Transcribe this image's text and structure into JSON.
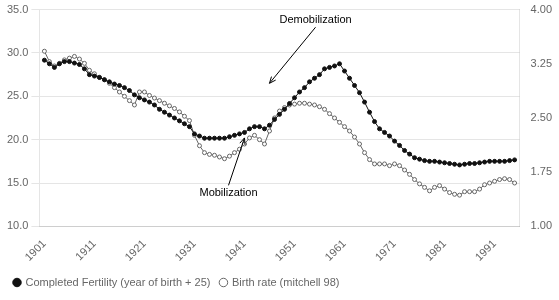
{
  "chart_data": {
    "type": "line",
    "x": [
      1901,
      1902,
      1903,
      1904,
      1905,
      1906,
      1907,
      1908,
      1909,
      1910,
      1911,
      1912,
      1913,
      1914,
      1915,
      1916,
      1917,
      1918,
      1919,
      1920,
      1921,
      1922,
      1923,
      1924,
      1925,
      1926,
      1927,
      1928,
      1929,
      1930,
      1931,
      1932,
      1933,
      1934,
      1935,
      1936,
      1937,
      1938,
      1939,
      1940,
      1941,
      1942,
      1943,
      1944,
      1945,
      1946,
      1947,
      1948,
      1949,
      1950,
      1951,
      1952,
      1953,
      1954,
      1955,
      1956,
      1957,
      1958,
      1959,
      1960,
      1961,
      1962,
      1963,
      1964,
      1965,
      1966,
      1967,
      1968,
      1969,
      1970,
      1971,
      1972,
      1973,
      1974,
      1975,
      1976,
      1977,
      1978,
      1979,
      1980,
      1981,
      1982,
      1983,
      1984,
      1985,
      1986,
      1987,
      1988,
      1989,
      1990,
      1991,
      1992,
      1993,
      1994,
      1995
    ],
    "series": [
      {
        "name": "Birth rate (mitchell 98)",
        "color": "#666666",
        "marker": "open_circle",
        "values": [
          30.2,
          29.0,
          28.5,
          28.8,
          29.2,
          29.4,
          29.6,
          29.3,
          28.8,
          28.0,
          27.6,
          27.2,
          26.9,
          26.5,
          26.0,
          25.5,
          25.0,
          24.5,
          24.0,
          25.5,
          25.5,
          25.1,
          24.8,
          24.5,
          24.2,
          23.9,
          23.6,
          23.2,
          22.7,
          22.2,
          20.5,
          19.3,
          18.5,
          18.3,
          18.2,
          18.0,
          17.8,
          18.1,
          18.5,
          18.9,
          19.5,
          20.2,
          20.5,
          20.0,
          19.5,
          21.0,
          22.5,
          23.3,
          23.7,
          24.0,
          24.1,
          24.2,
          24.2,
          24.1,
          24.0,
          23.8,
          23.5,
          23.0,
          22.5,
          22.0,
          21.5,
          21.0,
          20.3,
          19.5,
          18.5,
          17.7,
          17.2,
          17.2,
          17.2,
          17.0,
          17.2,
          17.0,
          16.5,
          16.0,
          15.4,
          14.9,
          14.5,
          14.1,
          14.5,
          14.7,
          14.3,
          13.9,
          13.7,
          13.6,
          14.0,
          14.0,
          14.0,
          14.3,
          14.8,
          15.0,
          15.2,
          15.4,
          15.5,
          15.4,
          15.0
        ]
      },
      {
        "name": "Completed Fertility (year of birth + 25)",
        "color": "#111111",
        "marker": "circle",
        "axis": "y2",
        "values": [
          3.3,
          3.25,
          3.2,
          3.25,
          3.28,
          3.28,
          3.26,
          3.24,
          3.18,
          3.1,
          3.08,
          3.06,
          3.03,
          3.0,
          2.97,
          2.95,
          2.92,
          2.88,
          2.82,
          2.78,
          2.75,
          2.72,
          2.68,
          2.62,
          2.58,
          2.54,
          2.5,
          2.46,
          2.42,
          2.38,
          2.28,
          2.25,
          2.22,
          2.22,
          2.22,
          2.22,
          2.22,
          2.24,
          2.26,
          2.28,
          2.3,
          2.35,
          2.38,
          2.38,
          2.35,
          2.4,
          2.48,
          2.55,
          2.62,
          2.7,
          2.78,
          2.86,
          2.92,
          3.0,
          3.05,
          3.1,
          3.18,
          3.2,
          3.22,
          3.25,
          3.15,
          3.05,
          2.95,
          2.85,
          2.72,
          2.58,
          2.45,
          2.35,
          2.3,
          2.25,
          2.18,
          2.12,
          2.05,
          2.0,
          1.95,
          1.93,
          1.91,
          1.9,
          1.9,
          1.89,
          1.88,
          1.87,
          1.86,
          1.85,
          1.86,
          1.87,
          1.87,
          1.88,
          1.89,
          1.9,
          1.9,
          1.9,
          1.9,
          1.91,
          1.92
        ]
      }
    ],
    "xlim": [
      1900,
      1996
    ],
    "xticks": [
      1901,
      1911,
      1921,
      1931,
      1941,
      1951,
      1961,
      1971,
      1981,
      1991
    ],
    "ylim": [
      10.0,
      35.0
    ],
    "yticks": [
      {
        "value": 10.0,
        "label": "10.0"
      },
      {
        "value": 15.0,
        "label": "15.0"
      },
      {
        "value": 20.0,
        "label": "20.0"
      },
      {
        "value": 25.0,
        "label": "25.0"
      },
      {
        "value": 30.0,
        "label": "30.0"
      },
      {
        "value": 35.0,
        "label": "35.0"
      }
    ],
    "y2lim": [
      1.0,
      4.0
    ],
    "y2ticks": [
      {
        "value": 1.0,
        "label": "1.00"
      },
      1.75,
      {
        "value": 2.5,
        "label": "2.50"
      },
      3.25,
      {
        "value": 4.0,
        "label": "4.00"
      }
    ],
    "grid": true,
    "legend": "bottom",
    "annotations": [
      {
        "text": "Mobilization",
        "xy": [
          1941,
          20.2
        ],
        "xytext": [
          1932,
          14.5
        ]
      },
      {
        "text": "Demobilization",
        "xy": [
          1946,
          26.5
        ],
        "xytext": [
          1948,
          33.2
        ]
      }
    ]
  }
}
